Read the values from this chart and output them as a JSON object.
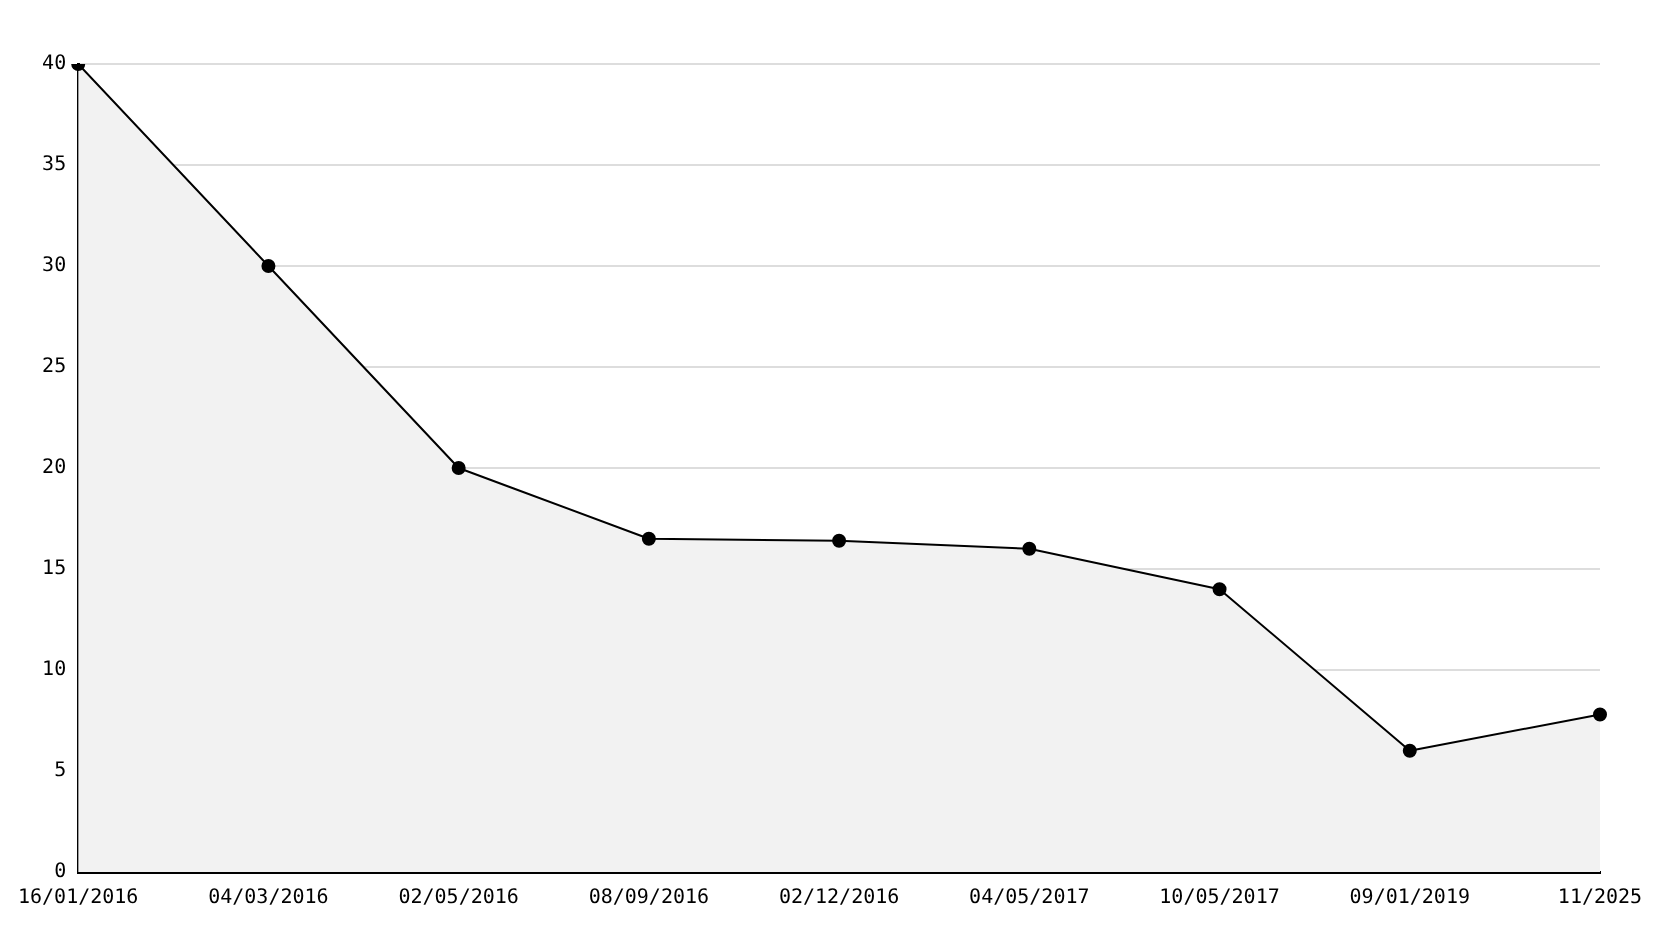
{
  "chart_data": {
    "type": "area",
    "categories": [
      "16/01/2016",
      "04/03/2016",
      "02/05/2016",
      "08/09/2016",
      "02/12/2016",
      "04/05/2017",
      "10/05/2017",
      "09/01/2019",
      "11/2025"
    ],
    "series": [
      {
        "color": "#000000",
        "values": [
          40,
          30,
          20,
          16.5,
          16.4,
          16,
          14,
          6,
          7.8
        ]
      }
    ],
    "ylim": [
      0,
      40
    ],
    "yticks": [
      0,
      5,
      10,
      15,
      20,
      25,
      30,
      35,
      40
    ],
    "grid": "y",
    "legend": false,
    "marker": "circle",
    "line_style": "solid"
  }
}
